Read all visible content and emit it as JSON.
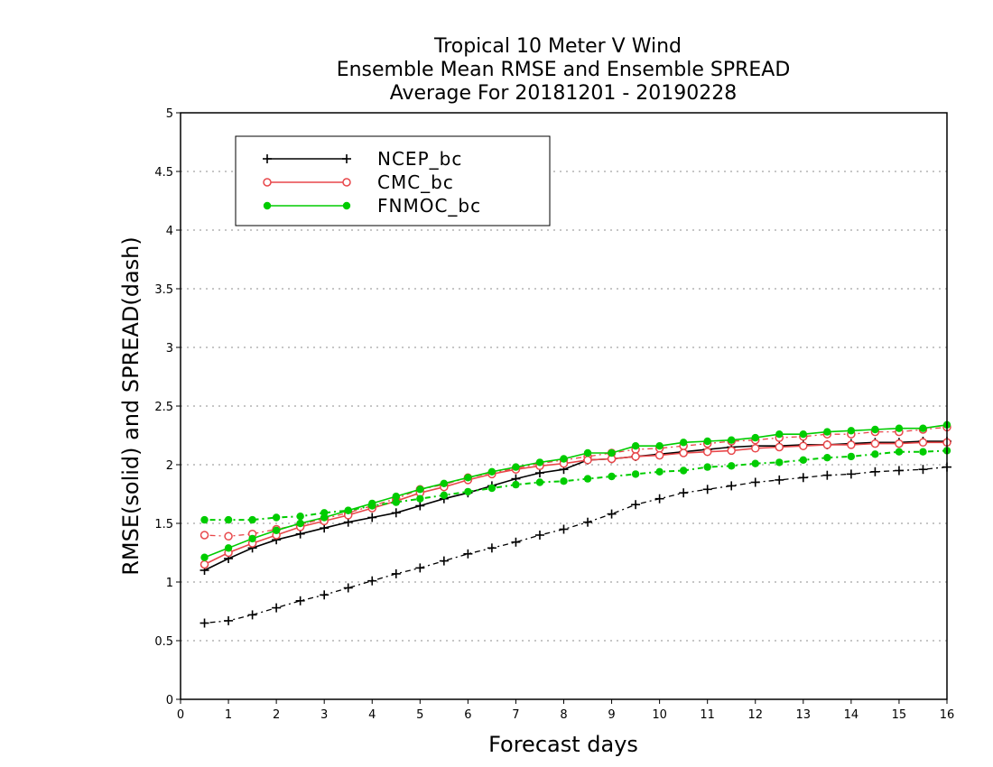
{
  "chart_data": {
    "type": "line",
    "title": [
      "Tropical 10 Meter V Wind",
      "Ensemble Mean RMSE and Ensemble SPREAD",
      "Average For 20181201 - 20190228"
    ],
    "xlabel": "Forecast days",
    "ylabel": "RMSE(solid) and SPREAD(dash)",
    "xlim": [
      0,
      16
    ],
    "ylim": [
      0,
      5
    ],
    "xticks": [
      "0",
      "1",
      "2",
      "3",
      "4",
      "5",
      "6",
      "7",
      "8",
      "9",
      "10",
      "11",
      "12",
      "13",
      "14",
      "15",
      "16"
    ],
    "yticks": [
      "0",
      "0.5",
      "1",
      "1.5",
      "2",
      "2.5",
      "3",
      "3.5",
      "4",
      "4.5",
      "5"
    ],
    "grid": "horizontal dotted",
    "legend_position": "top-left",
    "x": [
      0.5,
      1,
      1.5,
      2,
      2.5,
      3,
      3.5,
      4,
      4.5,
      5,
      5.5,
      6,
      6.5,
      7,
      7.5,
      8,
      8.5,
      9,
      9.5,
      10,
      10.5,
      11,
      11.5,
      12,
      12.5,
      13,
      13.5,
      14,
      14.5,
      15,
      15.5,
      16
    ],
    "series": [
      {
        "name": "NCEP_bc",
        "color": "#000000",
        "marker": "plus",
        "rmse": [
          1.1,
          1.2,
          1.29,
          1.36,
          1.41,
          1.46,
          1.51,
          1.55,
          1.59,
          1.65,
          1.71,
          1.76,
          1.82,
          1.88,
          1.93,
          1.96,
          2.04,
          2.05,
          2.07,
          2.09,
          2.11,
          2.13,
          2.15,
          2.16,
          2.16,
          2.17,
          2.17,
          2.18,
          2.19,
          2.19,
          2.2,
          2.2
        ],
        "spread": [
          0.65,
          0.67,
          0.72,
          0.78,
          0.84,
          0.89,
          0.95,
          1.01,
          1.07,
          1.12,
          1.18,
          1.24,
          1.29,
          1.34,
          1.4,
          1.45,
          1.51,
          1.58,
          1.66,
          1.71,
          1.76,
          1.79,
          1.82,
          1.85,
          1.87,
          1.89,
          1.91,
          1.92,
          1.94,
          1.95,
          1.96,
          1.98
        ]
      },
      {
        "name": "CMC_bc",
        "color": "#e8474a",
        "marker": "open-circle",
        "rmse": [
          1.15,
          1.25,
          1.33,
          1.4,
          1.47,
          1.52,
          1.57,
          1.63,
          1.69,
          1.76,
          1.81,
          1.87,
          1.92,
          1.96,
          1.99,
          2.01,
          2.04,
          2.05,
          2.07,
          2.08,
          2.1,
          2.11,
          2.12,
          2.14,
          2.15,
          2.16,
          2.17,
          2.17,
          2.18,
          2.18,
          2.19,
          2.19
        ],
        "spread": [
          1.4,
          1.39,
          1.41,
          1.45,
          1.49,
          1.54,
          1.59,
          1.65,
          1.71,
          1.79,
          1.83,
          1.89,
          1.93,
          1.97,
          2.01,
          2.04,
          2.07,
          2.1,
          2.13,
          2.14,
          2.16,
          2.18,
          2.2,
          2.21,
          2.23,
          2.24,
          2.26,
          2.26,
          2.28,
          2.28,
          2.3,
          2.32
        ]
      },
      {
        "name": "FNMOC_bc",
        "color": "#00cc00",
        "marker": "filled-circle",
        "rmse": [
          1.21,
          1.29,
          1.37,
          1.44,
          1.5,
          1.55,
          1.61,
          1.67,
          1.73,
          1.79,
          1.84,
          1.89,
          1.94,
          1.98,
          2.02,
          2.05,
          2.1,
          2.1,
          2.16,
          2.16,
          2.19,
          2.2,
          2.21,
          2.23,
          2.26,
          2.26,
          2.28,
          2.29,
          2.3,
          2.31,
          2.31,
          2.34
        ],
        "spread": [
          1.53,
          1.53,
          1.53,
          1.55,
          1.56,
          1.59,
          1.61,
          1.65,
          1.68,
          1.71,
          1.74,
          1.77,
          1.8,
          1.83,
          1.85,
          1.86,
          1.88,
          1.9,
          1.92,
          1.94,
          1.95,
          1.98,
          1.99,
          2.01,
          2.02,
          2.04,
          2.06,
          2.07,
          2.09,
          2.11,
          2.11,
          2.12
        ]
      }
    ]
  }
}
